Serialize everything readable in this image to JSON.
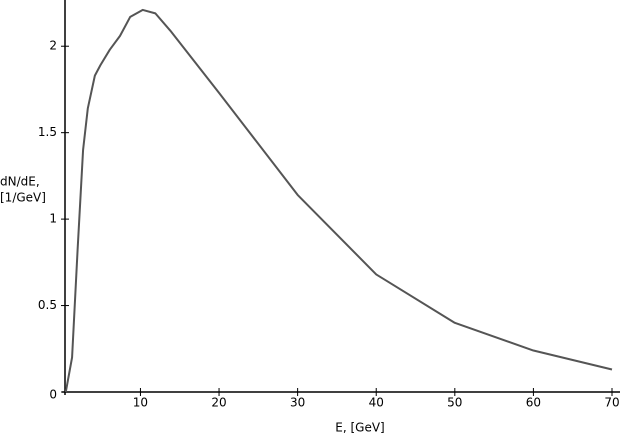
{
  "chart_data": {
    "type": "line",
    "x_label": "E, [GeV]",
    "y_label": [
      "dN/dE,",
      "[1/GeV]"
    ],
    "x": [
      0.5,
      1.3,
      2.0,
      2.7,
      3.3,
      4.2,
      4.9,
      6.1,
      7.4,
      8.7,
      10.3,
      11.9,
      13.8,
      20,
      30,
      40,
      50,
      60,
      70
    ],
    "series": [
      {
        "color": "#555555",
        "values": [
          0,
          0.2,
          0.82,
          1.4,
          1.64,
          1.83,
          1.89,
          1.98,
          2.06,
          2.17,
          2.21,
          2.19,
          2.09,
          1.73,
          1.14,
          0.68,
          0.4,
          0.24,
          0.13
        ]
      }
    ],
    "xlim": [
      0.4,
      70
    ],
    "ylim": [
      0,
      2.25
    ],
    "xticks": [
      10,
      20,
      30,
      40,
      50,
      60,
      70
    ],
    "yticks": [
      0,
      0.5,
      1,
      1.5,
      2
    ]
  }
}
